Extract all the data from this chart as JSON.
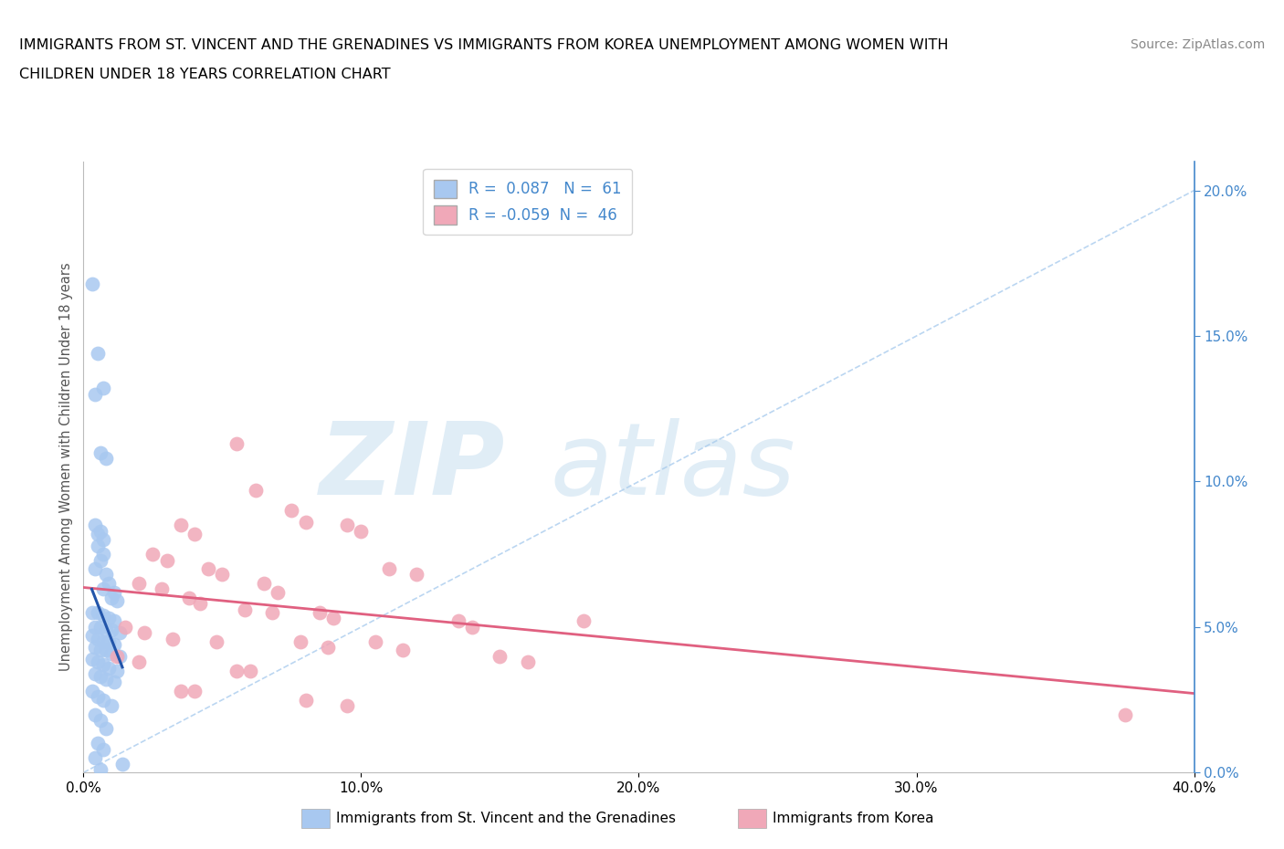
{
  "title_line1": "IMMIGRANTS FROM ST. VINCENT AND THE GRENADINES VS IMMIGRANTS FROM KOREA UNEMPLOYMENT AMONG WOMEN WITH",
  "title_line2": "CHILDREN UNDER 18 YEARS CORRELATION CHART",
  "source": "Source: ZipAtlas.com",
  "ylabel": "Unemployment Among Women with Children Under 18 years",
  "r_blue": 0.087,
  "n_blue": 61,
  "r_pink": -0.059,
  "n_pink": 46,
  "legend_blue": "Immigrants from St. Vincent and the Grenadines",
  "legend_pink": "Immigrants from Korea",
  "blue_color": "#a8c8f0",
  "pink_color": "#f0a8b8",
  "blue_line_color": "#2255aa",
  "pink_line_color": "#e06080",
  "right_axis_color": "#4488cc",
  "blue_scatter": [
    [
      0.3,
      16.8
    ],
    [
      0.5,
      14.4
    ],
    [
      0.7,
      13.2
    ],
    [
      0.4,
      13.0
    ],
    [
      0.6,
      11.0
    ],
    [
      0.8,
      10.8
    ],
    [
      0.4,
      8.5
    ],
    [
      0.6,
      8.3
    ],
    [
      0.5,
      8.2
    ],
    [
      0.7,
      8.0
    ],
    [
      0.5,
      7.8
    ],
    [
      0.7,
      7.5
    ],
    [
      0.6,
      7.3
    ],
    [
      0.4,
      7.0
    ],
    [
      0.8,
      6.8
    ],
    [
      0.9,
      6.5
    ],
    [
      0.7,
      6.3
    ],
    [
      1.1,
      6.2
    ],
    [
      1.0,
      6.0
    ],
    [
      1.2,
      5.9
    ],
    [
      0.3,
      5.5
    ],
    [
      0.5,
      5.5
    ],
    [
      0.7,
      5.4
    ],
    [
      0.9,
      5.3
    ],
    [
      1.1,
      5.2
    ],
    [
      0.4,
      5.0
    ],
    [
      0.6,
      5.0
    ],
    [
      0.8,
      4.9
    ],
    [
      1.0,
      4.9
    ],
    [
      1.3,
      4.8
    ],
    [
      0.3,
      4.7
    ],
    [
      0.5,
      4.6
    ],
    [
      0.7,
      4.5
    ],
    [
      0.9,
      4.5
    ],
    [
      1.1,
      4.4
    ],
    [
      0.4,
      4.3
    ],
    [
      0.6,
      4.2
    ],
    [
      0.8,
      4.2
    ],
    [
      1.0,
      4.1
    ],
    [
      1.3,
      4.0
    ],
    [
      0.3,
      3.9
    ],
    [
      0.5,
      3.8
    ],
    [
      0.7,
      3.7
    ],
    [
      0.9,
      3.6
    ],
    [
      1.2,
      3.5
    ],
    [
      0.4,
      3.4
    ],
    [
      0.6,
      3.3
    ],
    [
      0.8,
      3.2
    ],
    [
      1.1,
      3.1
    ],
    [
      0.3,
      2.8
    ],
    [
      0.5,
      2.6
    ],
    [
      0.7,
      2.5
    ],
    [
      1.0,
      2.3
    ],
    [
      0.4,
      2.0
    ],
    [
      0.6,
      1.8
    ],
    [
      0.8,
      1.5
    ],
    [
      0.5,
      1.0
    ],
    [
      0.7,
      0.8
    ],
    [
      0.4,
      0.5
    ],
    [
      1.4,
      0.3
    ],
    [
      0.6,
      0.1
    ]
  ],
  "pink_scatter": [
    [
      5.5,
      11.3
    ],
    [
      6.2,
      9.7
    ],
    [
      7.5,
      9.0
    ],
    [
      8.0,
      8.6
    ],
    [
      3.5,
      8.5
    ],
    [
      4.0,
      8.2
    ],
    [
      9.5,
      8.5
    ],
    [
      10.0,
      8.3
    ],
    [
      2.5,
      7.5
    ],
    [
      3.0,
      7.3
    ],
    [
      4.5,
      7.0
    ],
    [
      5.0,
      6.8
    ],
    [
      11.0,
      7.0
    ],
    [
      12.0,
      6.8
    ],
    [
      2.0,
      6.5
    ],
    [
      2.8,
      6.3
    ],
    [
      6.5,
      6.5
    ],
    [
      7.0,
      6.2
    ],
    [
      3.8,
      6.0
    ],
    [
      4.2,
      5.8
    ],
    [
      5.8,
      5.6
    ],
    [
      6.8,
      5.5
    ],
    [
      8.5,
      5.5
    ],
    [
      9.0,
      5.3
    ],
    [
      13.5,
      5.2
    ],
    [
      14.0,
      5.0
    ],
    [
      1.5,
      5.0
    ],
    [
      2.2,
      4.8
    ],
    [
      3.2,
      4.6
    ],
    [
      4.8,
      4.5
    ],
    [
      7.8,
      4.5
    ],
    [
      8.8,
      4.3
    ],
    [
      10.5,
      4.5
    ],
    [
      11.5,
      4.2
    ],
    [
      1.2,
      4.0
    ],
    [
      2.0,
      3.8
    ],
    [
      5.5,
      3.5
    ],
    [
      6.0,
      3.5
    ],
    [
      15.0,
      4.0
    ],
    [
      16.0,
      3.8
    ],
    [
      3.5,
      2.8
    ],
    [
      4.0,
      2.8
    ],
    [
      8.0,
      2.5
    ],
    [
      9.5,
      2.3
    ],
    [
      37.5,
      2.0
    ],
    [
      18.0,
      5.2
    ]
  ],
  "xlim": [
    0,
    40
  ],
  "ylim": [
    0,
    21
  ],
  "xtick_vals": [
    0,
    10,
    20,
    30,
    40
  ],
  "ytick_vals": [
    0,
    5,
    10,
    15,
    20
  ],
  "background_color": "#ffffff",
  "grid_color": "#ccdde8"
}
